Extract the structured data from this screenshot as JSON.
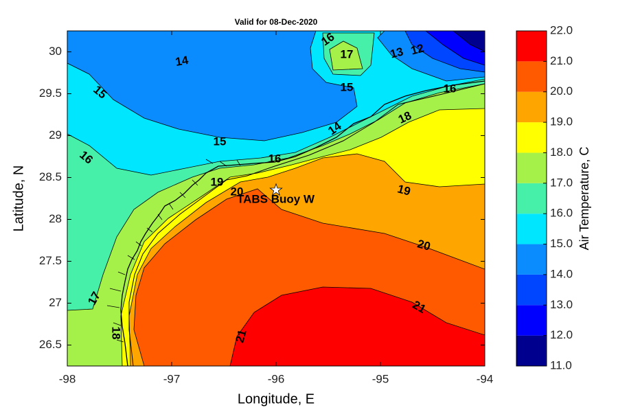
{
  "chart_data": {
    "type": "contour-map",
    "title": "Valid for 08-Dec-2020",
    "x_label": "Longitude, E",
    "y_label": "Latitude, N",
    "xlim": [
      -98,
      -94
    ],
    "ylim": [
      26.25,
      30.25
    ],
    "xticks": [
      -98,
      -97,
      -96,
      -95,
      -94
    ],
    "yticks": [
      26.5,
      27,
      27.5,
      28,
      28.5,
      29,
      29.5,
      30
    ],
    "colorbar": {
      "label": "Air Temperature, C",
      "ylim": [
        11,
        22
      ],
      "ticks": [
        {
          "value": 11,
          "label": "11.0"
        },
        {
          "value": 12,
          "label": "12.0"
        },
        {
          "value": 13,
          "label": "13.0"
        },
        {
          "value": 14,
          "label": "14.0"
        },
        {
          "value": 15,
          "label": "15.0"
        },
        {
          "value": 16,
          "label": "16.0"
        },
        {
          "value": 17,
          "label": "17.0"
        },
        {
          "value": 18,
          "label": "18.0"
        },
        {
          "value": 19,
          "label": "19.0"
        },
        {
          "value": 20,
          "label": "20.0"
        },
        {
          "value": 21,
          "label": "21.0"
        },
        {
          "value": 22,
          "label": "22.0"
        }
      ],
      "colors": [
        "#00008f",
        "#0000ff",
        "#0045ff",
        "#0a8cff",
        "#00e6ff",
        "#46f0a8",
        "#a6f04a",
        "#ffff00",
        "#ffa500",
        "#ff5a00",
        "#ff0000"
      ]
    },
    "contour_labels": [
      14,
      15,
      15,
      15,
      16,
      16,
      16,
      16,
      17,
      17,
      14,
      18,
      19,
      20,
      21,
      21,
      12,
      13,
      18,
      19,
      20
    ],
    "buoy": {
      "label": "TABS Buoy W",
      "lon": -96.0,
      "lat": 28.35
    }
  }
}
